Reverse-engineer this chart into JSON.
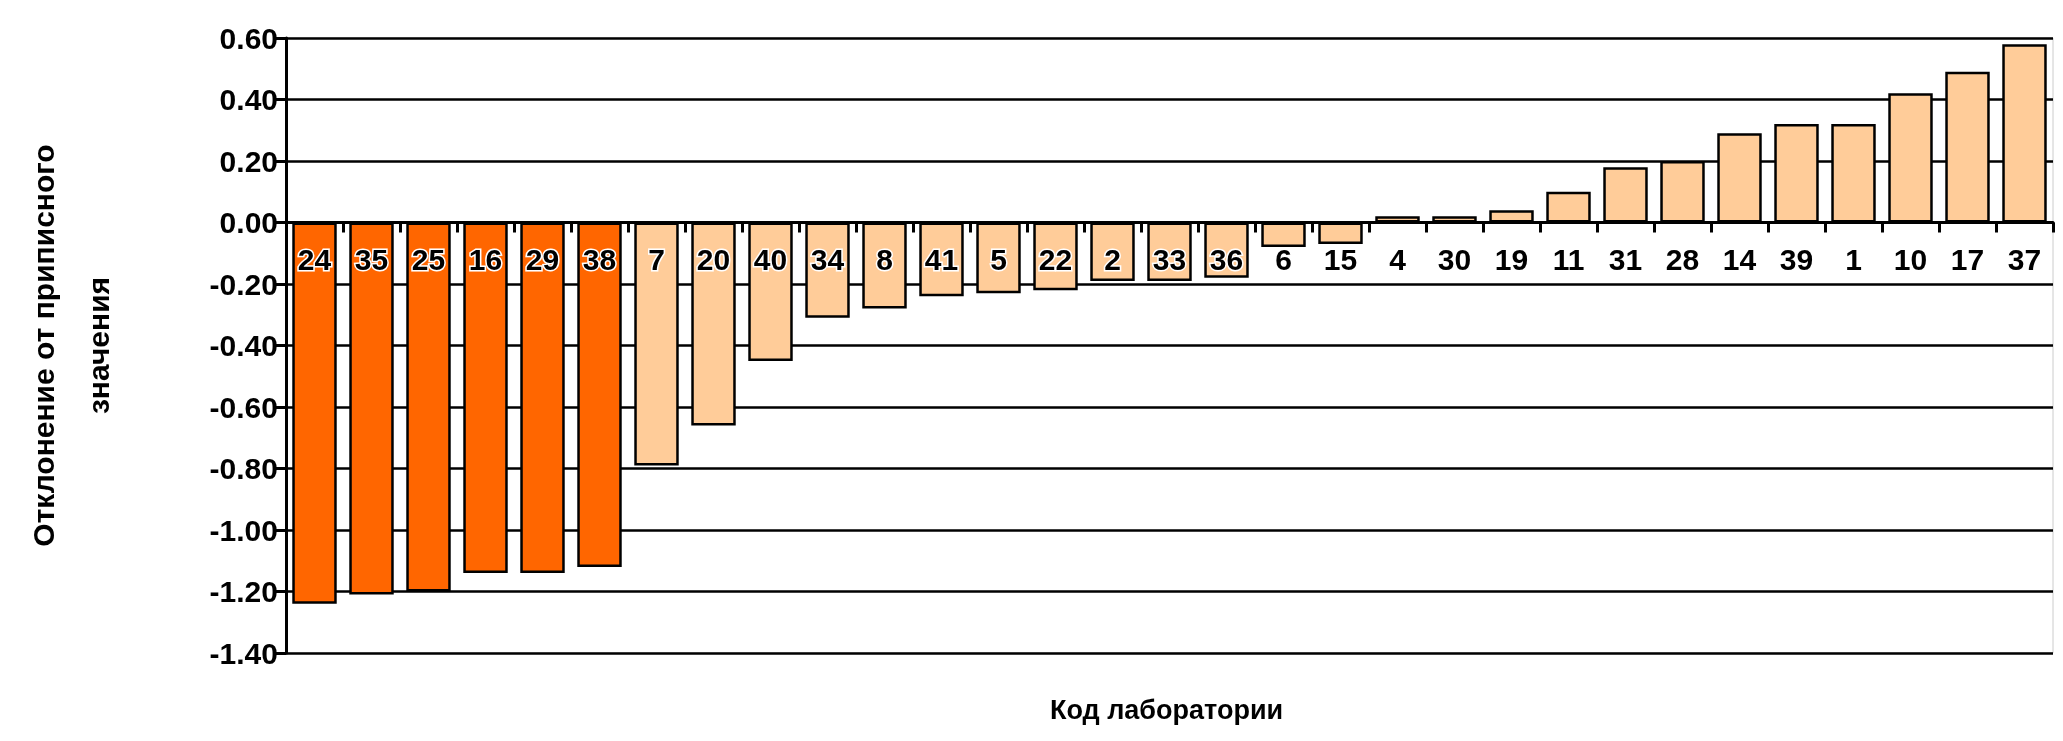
{
  "chart_data": {
    "type": "bar",
    "xlabel": "Код лаборатории",
    "ylabel": "Отклонение от приписного\nзначения",
    "categories": [
      "24",
      "35",
      "25",
      "16",
      "29",
      "38",
      "7",
      "20",
      "40",
      "34",
      "8",
      "41",
      "5",
      "22",
      "2",
      "33",
      "36",
      "6",
      "15",
      "4",
      "30",
      "19",
      "11",
      "31",
      "28",
      "14",
      "39",
      "1",
      "10",
      "17",
      "37"
    ],
    "values": [
      -1.24,
      -1.21,
      -1.2,
      -1.14,
      -1.14,
      -1.12,
      -0.79,
      -0.66,
      -0.45,
      -0.31,
      -0.28,
      -0.24,
      -0.23,
      -0.22,
      -0.19,
      -0.19,
      -0.18,
      -0.08,
      -0.07,
      0.02,
      0.02,
      0.04,
      0.1,
      0.18,
      0.2,
      0.29,
      0.32,
      0.32,
      0.42,
      0.49,
      0.58
    ],
    "colors": [
      "#ff6600",
      "#ff6600",
      "#ff6600",
      "#ff6600",
      "#ff6600",
      "#ff6600",
      "#ffcc99",
      "#ffcc99",
      "#ffcc99",
      "#ffcc99",
      "#ffcc99",
      "#ffcc99",
      "#ffcc99",
      "#ffcc99",
      "#ffcc99",
      "#ffcc99",
      "#ffcc99",
      "#ffcc99",
      "#ffcc99",
      "#ffcc99",
      "#ffcc99",
      "#ffcc99",
      "#ffcc99",
      "#ffcc99",
      "#ffcc99",
      "#ffcc99",
      "#ffcc99",
      "#ffcc99",
      "#ffcc99",
      "#ffcc99",
      "#ffcc99"
    ],
    "ylim": [
      -1.4,
      0.6
    ],
    "yticks": [
      {
        "value": -1.4,
        "label": "-1.40"
      },
      {
        "value": -1.2,
        "label": "-1.20"
      },
      {
        "value": -1.0,
        "label": "-1.00"
      },
      {
        "value": -0.8,
        "label": "-0.80"
      },
      {
        "value": -0.6,
        "label": "-0.60"
      },
      {
        "value": -0.4,
        "label": "-0.40"
      },
      {
        "value": -0.2,
        "label": "-0.20"
      },
      {
        "value": 0,
        "label": "0.00"
      },
      {
        "value": 0.2,
        "label": "0.20"
      },
      {
        "value": 0.4,
        "label": "0.40"
      },
      {
        "value": 0.6,
        "label": "0.60"
      }
    ],
    "grid": "y"
  }
}
